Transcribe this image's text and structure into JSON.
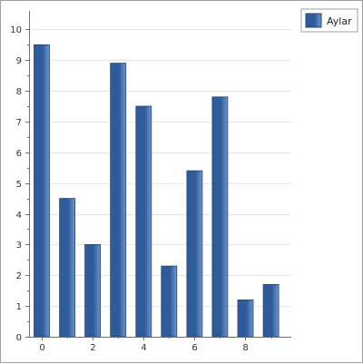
{
  "chart_data": {
    "type": "bar",
    "x": [
      0,
      1,
      2,
      3,
      4,
      5,
      6,
      7,
      8,
      9
    ],
    "series": [
      {
        "name": "Aylar",
        "values": [
          9.5,
          4.5,
          3.0,
          8.9,
          7.5,
          2.3,
          5.4,
          7.8,
          1.2,
          1.7
        ]
      }
    ],
    "xticks": [
      0,
      2,
      4,
      6,
      8
    ],
    "yticks": [
      0,
      1,
      2,
      3,
      4,
      5,
      6,
      7,
      8,
      9,
      10
    ],
    "xlim": [
      -0.5,
      9.8
    ],
    "ylim": [
      0,
      10.6
    ],
    "grid": true,
    "legend": "top-right",
    "colors": {
      "bar_dark": "#2f5b9a",
      "bar_light": "#6f96cf",
      "bar_edge": "#24466f",
      "grid": "#e6e6e6",
      "axis": "#707070"
    }
  }
}
